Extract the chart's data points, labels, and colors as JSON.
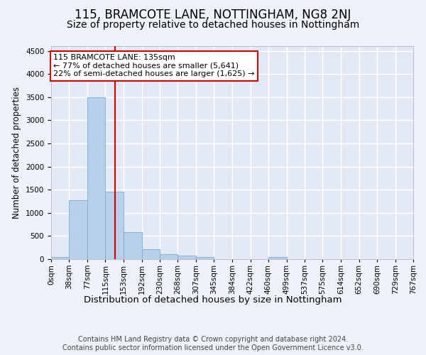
{
  "title": "115, BRAMCOTE LANE, NOTTINGHAM, NG8 2NJ",
  "subtitle": "Size of property relative to detached houses in Nottingham",
  "xlabel": "Distribution of detached houses by size in Nottingham",
  "ylabel": "Number of detached properties",
  "bar_color": "#b8d0ea",
  "bar_edge_color": "#7aaacf",
  "vline_x": 135,
  "vline_color": "#cc0000",
  "annotation_text": "115 BRAMCOTE LANE: 135sqm\n← 77% of detached houses are smaller (5,641)\n22% of semi-detached houses are larger (1,625) →",
  "annotation_box_color": "#ffffff",
  "annotation_box_edge": "#cc0000",
  "footer": "Contains HM Land Registry data © Crown copyright and database right 2024.\nContains public sector information licensed under the Open Government Licence v3.0.",
  "bin_edges": [
    0,
    38,
    77,
    115,
    153,
    192,
    230,
    268,
    307,
    345,
    384,
    422,
    460,
    499,
    537,
    575,
    614,
    652,
    690,
    729,
    767
  ],
  "bar_heights": [
    50,
    1270,
    3500,
    1450,
    580,
    220,
    105,
    70,
    50,
    0,
    0,
    0,
    45,
    0,
    0,
    0,
    0,
    0,
    0,
    0
  ],
  "ylim": [
    0,
    4600
  ],
  "yticks": [
    0,
    500,
    1000,
    1500,
    2000,
    2500,
    3000,
    3500,
    4000,
    4500
  ],
  "background_color": "#eef2f8",
  "plot_bg_color": "#e2e9f4",
  "grid_color": "#ffffff",
  "title_fontsize": 12,
  "subtitle_fontsize": 10,
  "xlabel_fontsize": 9.5,
  "ylabel_fontsize": 8.5,
  "tick_fontsize": 7.5,
  "annotation_fontsize": 8,
  "footer_fontsize": 7
}
